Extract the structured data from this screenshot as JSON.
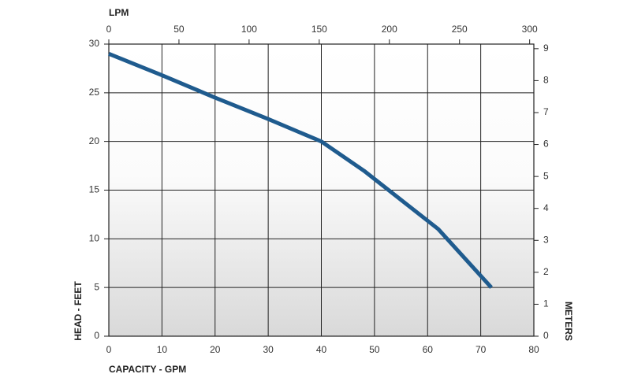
{
  "chart_data": {
    "type": "line",
    "x_label": "CAPACITY - GPM",
    "y_label": "HEAD - FEET",
    "x2_label": "LPM",
    "y2_label": "METERS",
    "x": [
      0,
      10,
      20,
      30,
      40,
      48,
      55,
      62,
      72
    ],
    "values": [
      29,
      26.8,
      24.5,
      22.3,
      20,
      17,
      14,
      11,
      5
    ],
    "color": "#1f5b8e",
    "xlim": [
      0,
      80
    ],
    "xticks": [
      0,
      10,
      20,
      30,
      40,
      50,
      60,
      70,
      80
    ],
    "ylim": [
      0,
      30
    ],
    "yticks": [
      0,
      5,
      10,
      15,
      20,
      25,
      30
    ],
    "x2lim": [
      0,
      303
    ],
    "x2ticks": [
      0,
      50,
      100,
      150,
      200,
      250,
      300
    ],
    "y2lim": [
      0,
      9.144
    ],
    "y2ticks": [
      0,
      1,
      2,
      3,
      4,
      5,
      6,
      7,
      8,
      9
    ],
    "grid": true
  }
}
